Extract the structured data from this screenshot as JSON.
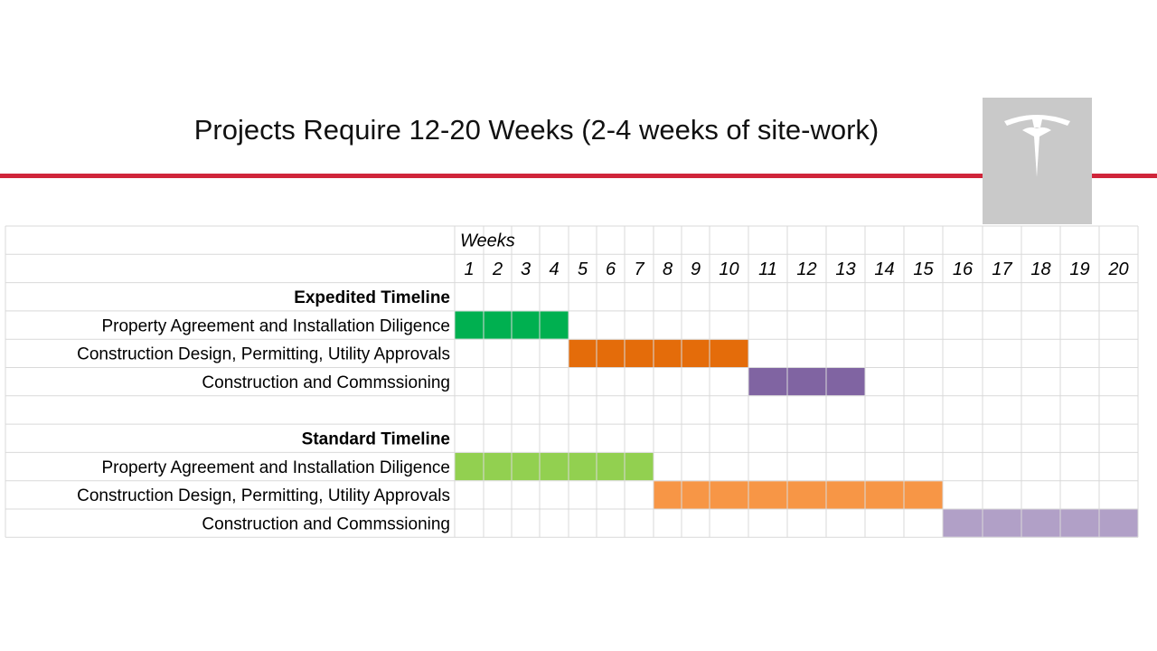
{
  "slide": {
    "title": "Projects Require 12-20 Weeks (2-4 weeks of site-work)",
    "accent_color": "#d0253a",
    "logo_color": "#c9c9c9",
    "logo_icon": "tesla-t-logo-icon"
  },
  "chart_data": {
    "type": "gantt",
    "axis_label": "Weeks",
    "weeks": [
      1,
      2,
      3,
      4,
      5,
      6,
      7,
      8,
      9,
      10,
      11,
      12,
      13,
      14,
      15,
      16,
      17,
      18,
      19,
      20
    ],
    "grid": true,
    "groups": [
      {
        "name": "Expedited Timeline",
        "tasks": [
          {
            "label": "Property Agreement and Installation Diligence",
            "start_week": 1,
            "end_week": 4,
            "color": "#00b050"
          },
          {
            "label": "Construction Design, Permitting, Utility Approvals",
            "start_week": 5,
            "end_week": 10,
            "color": "#e46c0a"
          },
          {
            "label": "Construction and Commssioning",
            "start_week": 11,
            "end_week": 13,
            "color": "#8064a2"
          }
        ]
      },
      {
        "name": "Standard Timeline",
        "tasks": [
          {
            "label": "Property Agreement and Installation Diligence",
            "start_week": 1,
            "end_week": 7,
            "color": "#92d050"
          },
          {
            "label": "Construction Design, Permitting, Utility Approvals",
            "start_week": 8,
            "end_week": 15,
            "color": "#f79646"
          },
          {
            "label": "Construction and Commssioning",
            "start_week": 16,
            "end_week": 20,
            "color": "#b1a0c7"
          }
        ]
      }
    ]
  }
}
